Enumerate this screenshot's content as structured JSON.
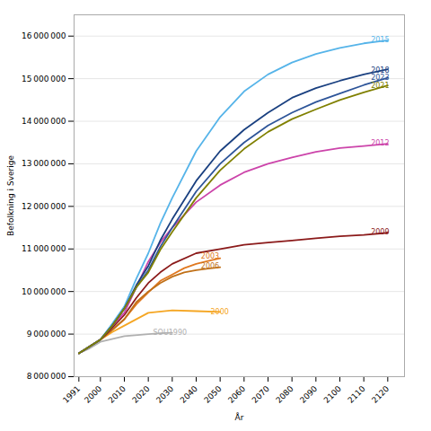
{
  "chart_data": {
    "type": "line",
    "xlabel": "År",
    "ylabel": "Befolkning i Sverige",
    "xlim": [
      1989,
      2127
    ],
    "ylim": [
      8000000,
      16500000
    ],
    "xticks": [
      1991,
      2000,
      2010,
      2020,
      2030,
      2040,
      2050,
      2060,
      2070,
      2080,
      2090,
      2100,
      2110,
      2120
    ],
    "yticks": [
      {
        "value": 8000000,
        "label": "8 000 000"
      },
      {
        "value": 9000000,
        "label": "9 000 000"
      },
      {
        "value": 10000000,
        "label": "10 000 000"
      },
      {
        "value": 11000000,
        "label": "11 000 000"
      },
      {
        "value": 12000000,
        "label": "12 000 000"
      },
      {
        "value": 13000000,
        "label": "13 000 000"
      },
      {
        "value": 14000000,
        "label": "14 000 000"
      },
      {
        "value": 15000000,
        "label": "15 000 000"
      },
      {
        "value": 16000000,
        "label": "16 000 000"
      }
    ],
    "grid": true,
    "series": [
      {
        "name": "SOU1990",
        "color": "#b0b0b0",
        "x": [
          1991,
          1995,
          2000,
          2010,
          2020,
          2025,
          2030
        ],
        "values": [
          8550000,
          8650000,
          8820000,
          8950000,
          9000000,
          9020000,
          9030000
        ]
      },
      {
        "name": "2000",
        "color": "#f5a623",
        "x": [
          1991,
          2000,
          2005,
          2010,
          2020,
          2030,
          2040,
          2050
        ],
        "values": [
          8550000,
          8870000,
          9050000,
          9200000,
          9500000,
          9560000,
          9540000,
          9520000
        ]
      },
      {
        "name": "2003",
        "color": "#e07820",
        "x": [
          1991,
          2000,
          2005,
          2010,
          2015,
          2020,
          2025,
          2030,
          2035,
          2040,
          2045,
          2050
        ],
        "values": [
          8550000,
          8870000,
          9100000,
          9350000,
          9700000,
          9980000,
          10250000,
          10400000,
          10550000,
          10650000,
          10720000,
          10780000
        ]
      },
      {
        "name": "2006",
        "color": "#c07018",
        "x": [
          1991,
          2000,
          2005,
          2010,
          2015,
          2020,
          2025,
          2030,
          2035,
          2040,
          2045,
          2050
        ],
        "values": [
          8550000,
          8870000,
          9100000,
          9350000,
          9750000,
          10000000,
          10200000,
          10350000,
          10450000,
          10500000,
          10540000,
          10570000
        ]
      },
      {
        "name": "2009",
        "color": "#8b1a1a",
        "x": [
          1991,
          2000,
          2005,
          2010,
          2015,
          2020,
          2025,
          2030,
          2040,
          2050,
          2060,
          2070,
          2080,
          2090,
          2100,
          2110,
          2120
        ],
        "values": [
          8550000,
          8870000,
          9150000,
          9450000,
          9850000,
          10200000,
          10450000,
          10650000,
          10900000,
          11000000,
          11100000,
          11150000,
          11200000,
          11250000,
          11300000,
          11330000,
          11380000
        ]
      },
      {
        "name": "2012",
        "color": "#cc44aa",
        "x": [
          1991,
          2000,
          2005,
          2010,
          2015,
          2020,
          2025,
          2030,
          2040,
          2050,
          2060,
          2070,
          2080,
          2090,
          2100,
          2110,
          2120
        ],
        "values": [
          8550000,
          8870000,
          9200000,
          9500000,
          10100000,
          10700000,
          11150000,
          11500000,
          12100000,
          12500000,
          12800000,
          13000000,
          13150000,
          13280000,
          13370000,
          13420000,
          13470000
        ]
      },
      {
        "name": "2015",
        "color": "#56b4e9",
        "x": [
          1991,
          2000,
          2005,
          2010,
          2015,
          2020,
          2025,
          2030,
          2040,
          2050,
          2060,
          2070,
          2080,
          2090,
          2100,
          2110,
          2120
        ],
        "values": [
          8550000,
          8870000,
          9250000,
          9650000,
          10300000,
          10900000,
          11600000,
          12200000,
          13300000,
          14100000,
          14700000,
          15100000,
          15380000,
          15580000,
          15720000,
          15830000,
          15900000
        ]
      },
      {
        "name": "2018",
        "color": "#1a4080",
        "x": [
          1991,
          2000,
          2005,
          2010,
          2015,
          2020,
          2025,
          2030,
          2040,
          2050,
          2060,
          2070,
          2080,
          2090,
          2100,
          2110,
          2120
        ],
        "values": [
          8550000,
          8870000,
          9200000,
          9600000,
          10150000,
          10600000,
          11200000,
          11700000,
          12600000,
          13300000,
          13800000,
          14200000,
          14550000,
          14780000,
          14950000,
          15100000,
          15220000
        ]
      },
      {
        "name": "2023",
        "color": "#2e5599",
        "x": [
          1991,
          2000,
          2005,
          2010,
          2015,
          2020,
          2025,
          2030,
          2040,
          2050,
          2060,
          2070,
          2080,
          2090,
          2100,
          2110,
          2120
        ],
        "values": [
          8550000,
          8870000,
          9200000,
          9600000,
          10100000,
          10500000,
          11050000,
          11500000,
          12350000,
          13000000,
          13500000,
          13900000,
          14200000,
          14450000,
          14650000,
          14850000,
          15020000
        ]
      },
      {
        "name": "2021",
        "color": "#808000",
        "x": [
          1991,
          2000,
          2005,
          2010,
          2015,
          2020,
          2025,
          2030,
          2040,
          2050,
          2060,
          2070,
          2080,
          2090,
          2100,
          2110,
          2120
        ],
        "values": [
          8550000,
          8870000,
          9200000,
          9600000,
          10100000,
          10450000,
          10980000,
          11400000,
          12200000,
          12850000,
          13350000,
          13750000,
          14050000,
          14280000,
          14500000,
          14680000,
          14840000
        ]
      }
    ],
    "annotations": [
      {
        "text": "SOU1990",
        "x": 2022,
        "y": 9030000,
        "color": "#b0b0b0"
      },
      {
        "text": "2000",
        "x": 2046,
        "y": 9530000,
        "color": "#f5a623"
      },
      {
        "text": "2003",
        "x": 2042,
        "y": 10830000,
        "color": "#e07820"
      },
      {
        "text": "2006",
        "x": 2042,
        "y": 10590000,
        "color": "#c07018"
      },
      {
        "text": "2009",
        "x": 2113,
        "y": 11400000,
        "color": "#8b1a1a"
      },
      {
        "text": "2012",
        "x": 2113,
        "y": 13480000,
        "color": "#cc44aa"
      },
      {
        "text": "2015",
        "x": 2113,
        "y": 15920000,
        "color": "#56b4e9"
      },
      {
        "text": "2018",
        "x": 2113,
        "y": 15200000,
        "color": "#1a4080"
      },
      {
        "text": "2023",
        "x": 2113,
        "y": 15030000,
        "color": "#2e5599"
      },
      {
        "text": "2021",
        "x": 2113,
        "y": 14830000,
        "color": "#808000"
      }
    ]
  }
}
